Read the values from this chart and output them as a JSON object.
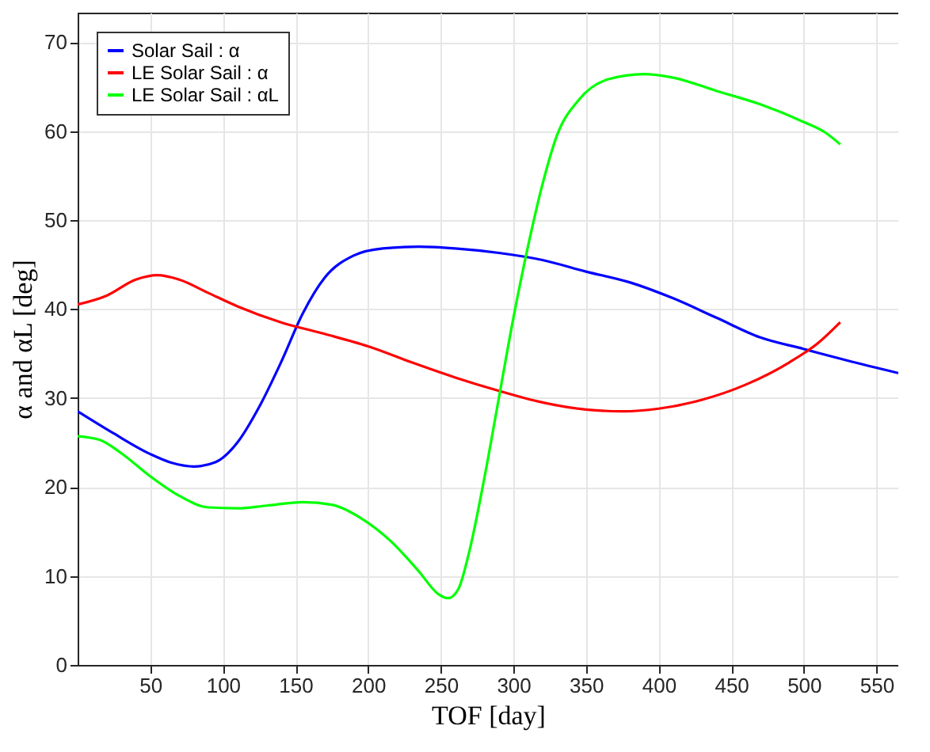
{
  "chart_data": {
    "type": "line",
    "xlabel": "TOF [day]",
    "ylabel": "α and αL [deg]",
    "xlim": [
      0,
      565
    ],
    "ylim": [
      0,
      73.3
    ],
    "xticks": [
      50,
      100,
      150,
      200,
      250,
      300,
      350,
      400,
      450,
      500,
      550
    ],
    "yticks": [
      0,
      10,
      20,
      30,
      40,
      50,
      60,
      70
    ],
    "grid": true,
    "legend": "top left",
    "line_style": "solid",
    "marker": "none",
    "series": [
      {
        "name": "Solar Sail : α",
        "color": "#0000ff",
        "x": [
          0,
          25,
          50,
          65,
          80,
          95,
          110,
          125,
          140,
          155,
          170,
          190,
          210,
          235,
          260,
          290,
          320,
          350,
          380,
          410,
          440,
          470,
          500,
          530,
          565
        ],
        "values": [
          28.5,
          26,
          23.7,
          22.7,
          22.3,
          22.8,
          25,
          29,
          34,
          39.5,
          43.5,
          46,
          46.8,
          47,
          46.8,
          46.3,
          45.5,
          44.2,
          43,
          41.2,
          39,
          36.8,
          35.5,
          34.2,
          32.8
        ]
      },
      {
        "name": "LE Solar Sail : α",
        "color": "#ff0000",
        "x": [
          0,
          20,
          40,
          55,
          70,
          90,
          110,
          140,
          170,
          200,
          230,
          260,
          290,
          320,
          350,
          375,
          400,
          430,
          460,
          490,
          510,
          525
        ],
        "values": [
          40.5,
          41.5,
          43.3,
          43.8,
          43.3,
          41.8,
          40.3,
          38.5,
          37.2,
          35.8,
          34,
          32.3,
          30.8,
          29.5,
          28.7,
          28.5,
          28.8,
          29.8,
          31.5,
          34,
          36.2,
          38.5
        ]
      },
      {
        "name": "LE Solar Sail : αL",
        "color": "#00ff00",
        "x": [
          0,
          15,
          30,
          50,
          70,
          90,
          110,
          130,
          155,
          175,
          195,
          215,
          235,
          248,
          255,
          262,
          270,
          280,
          290,
          300,
          310,
          320,
          330,
          345,
          365,
          390,
          410,
          440,
          470,
          500,
          515,
          525
        ],
        "values": [
          25.7,
          25.3,
          23.8,
          21.2,
          19,
          17.7,
          17.6,
          17.9,
          18.3,
          18,
          16.5,
          14,
          10.5,
          8,
          7.5,
          8.5,
          13,
          21,
          30,
          39,
          47,
          54,
          59.5,
          63.5,
          65.8,
          66.4,
          66,
          64.5,
          63,
          61,
          59.8,
          58.5
        ]
      }
    ]
  }
}
